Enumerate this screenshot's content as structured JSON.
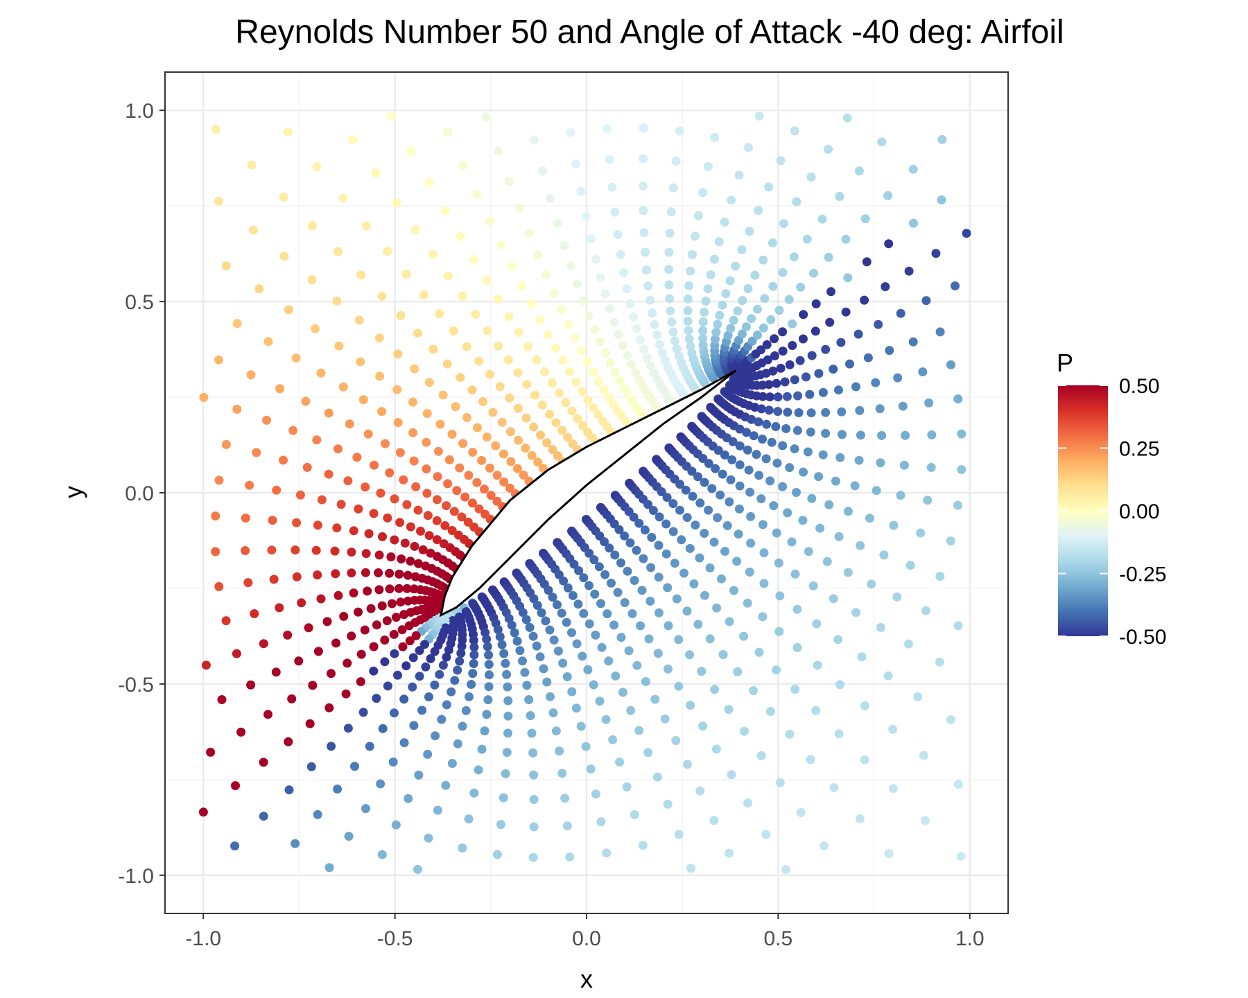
{
  "chart_data": {
    "type": "scatter",
    "title": "Reynolds Number 50 and Angle of Attack -40 deg: Airfoil",
    "xlabel": "x",
    "ylabel": "y",
    "xlim": [
      -1.1,
      1.1
    ],
    "ylim": [
      -1.1,
      1.1
    ],
    "x_ticks": [
      -1.0,
      -0.5,
      0.0,
      0.5,
      1.0
    ],
    "y_ticks": [
      -1.0,
      -0.5,
      0.0,
      0.5,
      1.0
    ],
    "x_tick_labels": [
      "-1.0",
      "-0.5",
      "0.0",
      "0.5",
      "1.0"
    ],
    "y_tick_labels": [
      "-1.0",
      "-0.5",
      "0.0",
      "0.5",
      "1.0"
    ],
    "grid": true,
    "legend": {
      "title": "P",
      "placement": "right",
      "type": "colorbar",
      "range": [
        -0.5,
        0.5
      ],
      "ticks": [
        0.5,
        0.25,
        0.0,
        -0.25,
        -0.5
      ],
      "tick_labels": [
        "0.50",
        "0.25",
        "0.00",
        "-0.25",
        "-0.50"
      ],
      "palette": [
        "#313695",
        "#4575b4",
        "#74add1",
        "#abd9e9",
        "#e0f3f8",
        "#ffffbf",
        "#fee090",
        "#fdae61",
        "#f46d43",
        "#d73027",
        "#a50026"
      ]
    },
    "field": {
      "variable": "P",
      "leading_edge": [
        -0.38,
        -0.32
      ],
      "trailing_edge": [
        0.39,
        0.32
      ],
      "approx_range": [
        -0.5,
        0.5
      ],
      "note_positive_region": "upper-left of airfoil (pressure side)",
      "note_negative_region": "lower-right of airfoil and wake"
    },
    "airfoil_outline": {
      "upper": [
        [
          -0.38,
          -0.32
        ],
        [
          -0.37,
          -0.27
        ],
        [
          -0.35,
          -0.22
        ],
        [
          -0.3,
          -0.14
        ],
        [
          -0.2,
          -0.02
        ],
        [
          -0.1,
          0.06
        ],
        [
          0.0,
          0.12
        ],
        [
          0.1,
          0.17
        ],
        [
          0.2,
          0.22
        ],
        [
          0.3,
          0.27
        ],
        [
          0.39,
          0.32
        ]
      ],
      "lower": [
        [
          0.39,
          0.32
        ],
        [
          0.3,
          0.25
        ],
        [
          0.2,
          0.18
        ],
        [
          0.1,
          0.1
        ],
        [
          0.0,
          0.02
        ],
        [
          -0.1,
          -0.07
        ],
        [
          -0.2,
          -0.17
        ],
        [
          -0.28,
          -0.25
        ],
        [
          -0.34,
          -0.3
        ],
        [
          -0.38,
          -0.32
        ]
      ]
    }
  }
}
